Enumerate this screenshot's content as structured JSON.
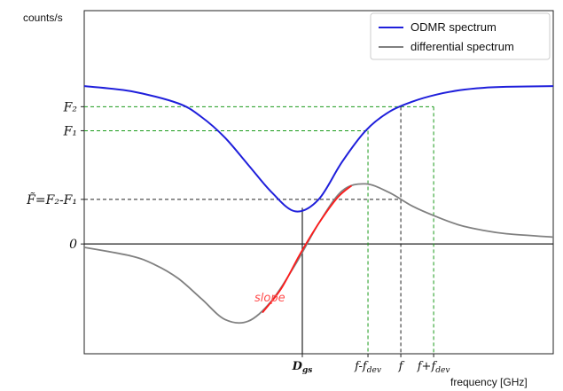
{
  "chart_data": {
    "type": "line",
    "title": "",
    "xlabel": "frequency [GHz]",
    "ylabel": "counts/s",
    "xlim": [
      0,
      10
    ],
    "ylim": [
      -3.2,
      6.8
    ],
    "grid": false,
    "legend_position": "top-right",
    "series": [
      {
        "name": "ODMR spectrum",
        "color": "#1f1fdb",
        "x": [
          0,
          1,
          2,
          2.5,
          3,
          3.5,
          4,
          4.5,
          5,
          5.5,
          6,
          6.5,
          7,
          7.5,
          8,
          8.5,
          9,
          10
        ],
        "y": [
          4.6,
          4.45,
          4.1,
          3.7,
          3.1,
          2.3,
          1.5,
          0.95,
          1.3,
          2.4,
          3.3,
          3.85,
          4.15,
          4.35,
          4.48,
          4.55,
          4.58,
          4.6
        ]
      },
      {
        "name": "differential spectrum",
        "color": "#808080",
        "x": [
          0,
          1,
          1.5,
          2,
          2.5,
          3,
          3.5,
          4,
          4.5,
          5,
          5.5,
          6,
          6.5,
          7,
          7.5,
          8,
          8.5,
          9,
          10
        ],
        "y": [
          -0.1,
          -0.35,
          -0.6,
          -1.0,
          -1.6,
          -2.2,
          -2.25,
          -1.65,
          -0.6,
          0.6,
          1.55,
          1.75,
          1.5,
          1.1,
          0.8,
          0.55,
          0.4,
          0.3,
          0.2
        ]
      },
      {
        "name": "slope",
        "color": "#ff1a1a",
        "x": [
          3.8,
          4.2,
          4.6,
          5.0,
          5.4,
          5.7
        ],
        "y": [
          -2.0,
          -1.3,
          -0.3,
          0.6,
          1.35,
          1.7
        ]
      }
    ],
    "yticks": [
      {
        "label": "F₂",
        "value": 4.0
      },
      {
        "label": "F₁",
        "value": 3.3
      },
      {
        "label": "F̃=F₂-F₁",
        "value": 1.3
      },
      {
        "label": "0",
        "value": 0
      }
    ],
    "xticks": [
      {
        "label": "D",
        "sub": "gs",
        "value": 4.65
      },
      {
        "label": "f-f",
        "sub": "dev",
        "value": 6.05
      },
      {
        "label": "f",
        "sub": "",
        "value": 6.75
      },
      {
        "label": "f+f",
        "sub": "dev",
        "value": 7.45
      }
    ],
    "annotations": [
      {
        "text": "slope",
        "color": "#ff4d4d"
      }
    ]
  }
}
